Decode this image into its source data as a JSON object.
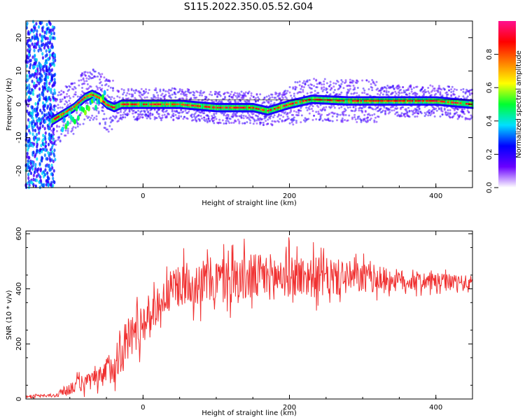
{
  "figure": {
    "title": "S115.2022.350.05.52.G04"
  },
  "chart_data": [
    {
      "type": "heatmap",
      "xlabel": "Height of straight line (km)",
      "ylabel": "Frequency (Hz)",
      "xlim": [
        -160,
        450
      ],
      "ylim": [
        -25,
        25
      ],
      "x_ticks": [
        0,
        200,
        400
      ],
      "y_ticks": [
        -20,
        -10,
        0,
        10,
        20
      ],
      "colorbar": {
        "label": "Normalized spectral amplitude",
        "range": [
          0.0,
          1.0
        ],
        "ticks": [
          0.0,
          0.2,
          0.4,
          0.6,
          0.8
        ],
        "tick_labels": [
          "0.0",
          "0.2",
          "0.4",
          "0.6",
          "0.8"
        ],
        "colormap": [
          "#ffffff",
          "#6a00ff",
          "#0000ff",
          "#00e0ff",
          "#00ff30",
          "#ffff00",
          "#ff7f00",
          "#ff0000",
          "#ff1090"
        ]
      },
      "ridge": {
        "description_x": [
          -125,
          -110,
          -95,
          -80,
          -70,
          -60,
          -50,
          -40,
          -30,
          0,
          50,
          100,
          150,
          170,
          200,
          230,
          280,
          320,
          400,
          450
        ],
        "y": [
          -5,
          -3,
          -1,
          2,
          3,
          2,
          0,
          -1,
          0,
          0,
          0,
          -1,
          -1,
          -2,
          0,
          1.5,
          1,
          1,
          1,
          0
        ]
      },
      "color": "#ff0000"
    },
    {
      "type": "line",
      "xlabel": "Height of straight line (km)",
      "ylabel": "SNR (10 * v/v)",
      "xlim": [
        -160,
        450
      ],
      "ylim": [
        0,
        610
      ],
      "x_ticks": [
        0,
        200,
        400
      ],
      "y_ticks": [
        0,
        200,
        400,
        600
      ],
      "series": [
        {
          "color": "#f03030",
          "envelope_x": [
            -160,
            -120,
            -100,
            -80,
            -60,
            -40,
            -20,
            0,
            20,
            40,
            60,
            100,
            150,
            200,
            250,
            300,
            350,
            400,
            450
          ],
          "baseline": [
            10,
            12,
            40,
            60,
            70,
            130,
            220,
            280,
            340,
            400,
            420,
            430,
            440,
            450,
            440,
            440,
            430,
            425,
            420
          ],
          "spread": [
            5,
            8,
            30,
            40,
            50,
            90,
            110,
            100,
            80,
            90,
            100,
            110,
            110,
            100,
            90,
            70,
            50,
            40,
            35
          ]
        }
      ]
    }
  ]
}
